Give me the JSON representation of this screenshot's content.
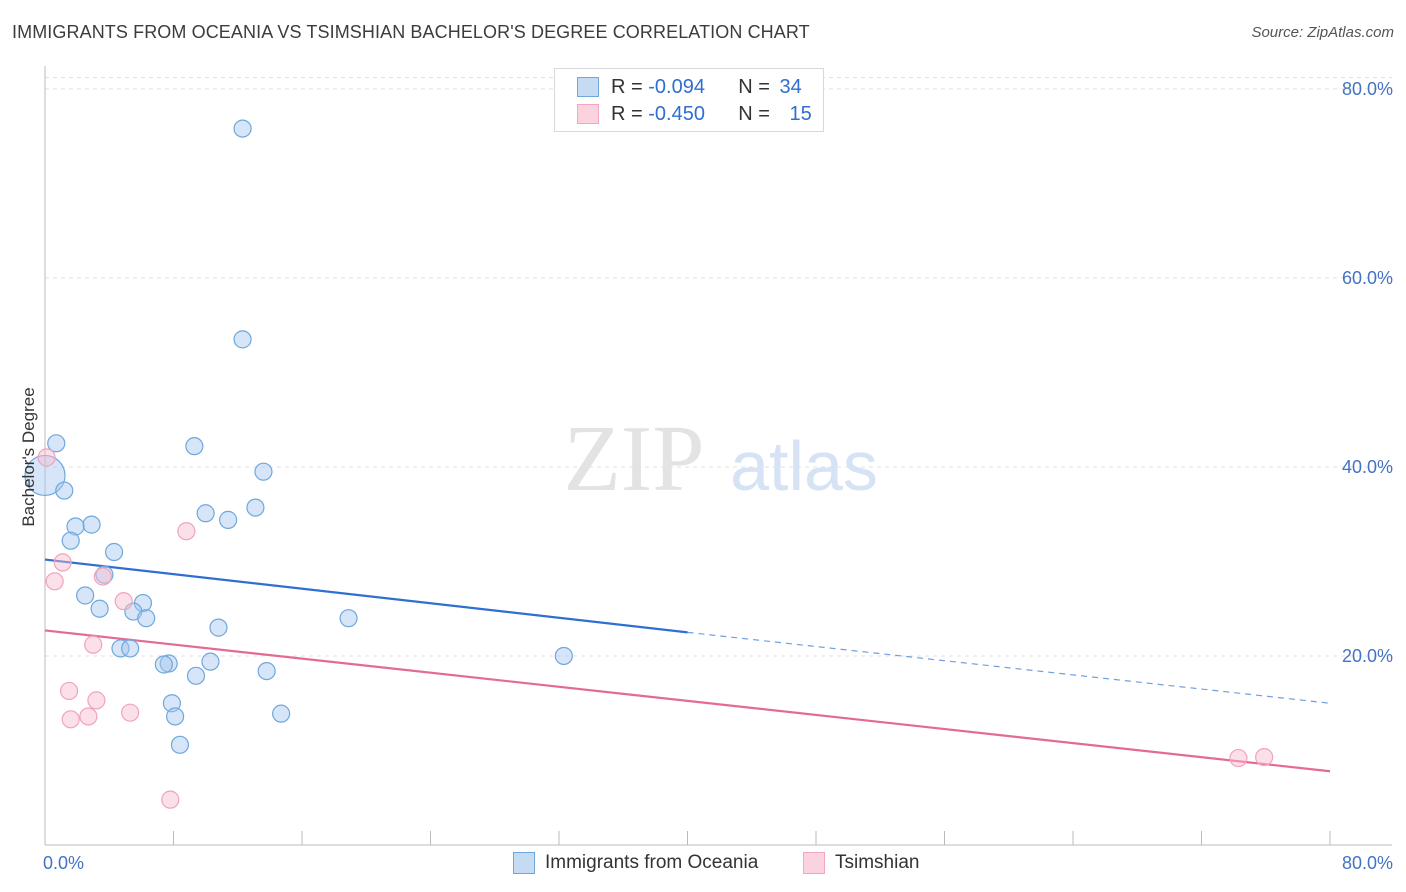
{
  "header": {
    "title": "IMMIGRANTS FROM OCEANIA VS TSIMSHIAN BACHELOR'S DEGREE CORRELATION CHART",
    "source": "Source: ZipAtlas.com"
  },
  "watermark": {
    "zip": "ZIP",
    "atlas": "atlas"
  },
  "legend": {
    "rows": [
      {
        "r_label": "R = ",
        "r_value": "-0.094",
        "n_label": "N = ",
        "n_value": "34",
        "color": "#6fa8dc"
      },
      {
        "r_label": "R = ",
        "r_value": "-0.450",
        "n_label": "N = ",
        "n_value": "15",
        "color": "#f4a6c0"
      }
    ]
  },
  "chart_data": {
    "type": "scatter",
    "title": "IMMIGRANTS FROM OCEANIA VS TSIMSHIAN BACHELOR'S DEGREE CORRELATION CHART",
    "xlabel": "",
    "ylabel": "Bachelor's Degree",
    "xlim": [
      0,
      80
    ],
    "ylim": [
      0,
      82
    ],
    "y_ticks": [
      "20.0%",
      "40.0%",
      "60.0%",
      "80.0%"
    ],
    "x_tick_labels": [
      "0.0%",
      "80.0%"
    ],
    "grid": true,
    "legend_position": "bottom",
    "series": [
      {
        "name": "Immigrants from Oceania",
        "color": "#6fa8dc",
        "trend": {
          "x": [
            0,
            40
          ],
          "y": [
            30.2,
            22.5
          ],
          "dashed_to": [
            80,
            15.0
          ]
        },
        "points": [
          [
            12.3,
            75.8
          ],
          [
            12.3,
            53.5
          ],
          [
            0.7,
            42.5
          ],
          [
            9.3,
            42.2
          ],
          [
            13.6,
            39.5
          ],
          [
            0.0,
            39.1
          ],
          [
            1.2,
            37.5
          ],
          [
            13.1,
            35.7
          ],
          [
            10.0,
            35.1
          ],
          [
            11.4,
            34.4
          ],
          [
            2.9,
            33.9
          ],
          [
            1.9,
            33.7
          ],
          [
            1.6,
            32.2
          ],
          [
            4.3,
            31.0
          ],
          [
            3.7,
            28.6
          ],
          [
            2.5,
            26.4
          ],
          [
            6.1,
            25.6
          ],
          [
            3.4,
            25.0
          ],
          [
            5.5,
            24.7
          ],
          [
            6.3,
            24.0
          ],
          [
            18.9,
            24.0
          ],
          [
            10.8,
            23.0
          ],
          [
            4.7,
            20.8
          ],
          [
            5.3,
            20.8
          ],
          [
            32.3,
            20.0
          ],
          [
            7.7,
            19.2
          ],
          [
            10.3,
            19.4
          ],
          [
            7.4,
            19.1
          ],
          [
            13.8,
            18.4
          ],
          [
            9.4,
            17.9
          ],
          [
            7.9,
            15.0
          ],
          [
            8.1,
            13.6
          ],
          [
            14.7,
            13.9
          ],
          [
            8.4,
            10.6
          ]
        ]
      },
      {
        "name": "Tsimshian",
        "color": "#f4a6c0",
        "trend": {
          "x": [
            0,
            80
          ],
          "y": [
            22.7,
            7.8
          ]
        },
        "points": [
          [
            0.1,
            41.0
          ],
          [
            8.8,
            33.2
          ],
          [
            1.1,
            29.9
          ],
          [
            0.6,
            27.9
          ],
          [
            3.6,
            28.4
          ],
          [
            4.9,
            25.8
          ],
          [
            3.0,
            21.2
          ],
          [
            1.5,
            16.3
          ],
          [
            3.2,
            15.3
          ],
          [
            1.6,
            13.3
          ],
          [
            2.7,
            13.6
          ],
          [
            5.3,
            14.0
          ],
          [
            7.8,
            4.8
          ],
          [
            74.3,
            9.2
          ],
          [
            75.9,
            9.3
          ]
        ]
      }
    ]
  }
}
